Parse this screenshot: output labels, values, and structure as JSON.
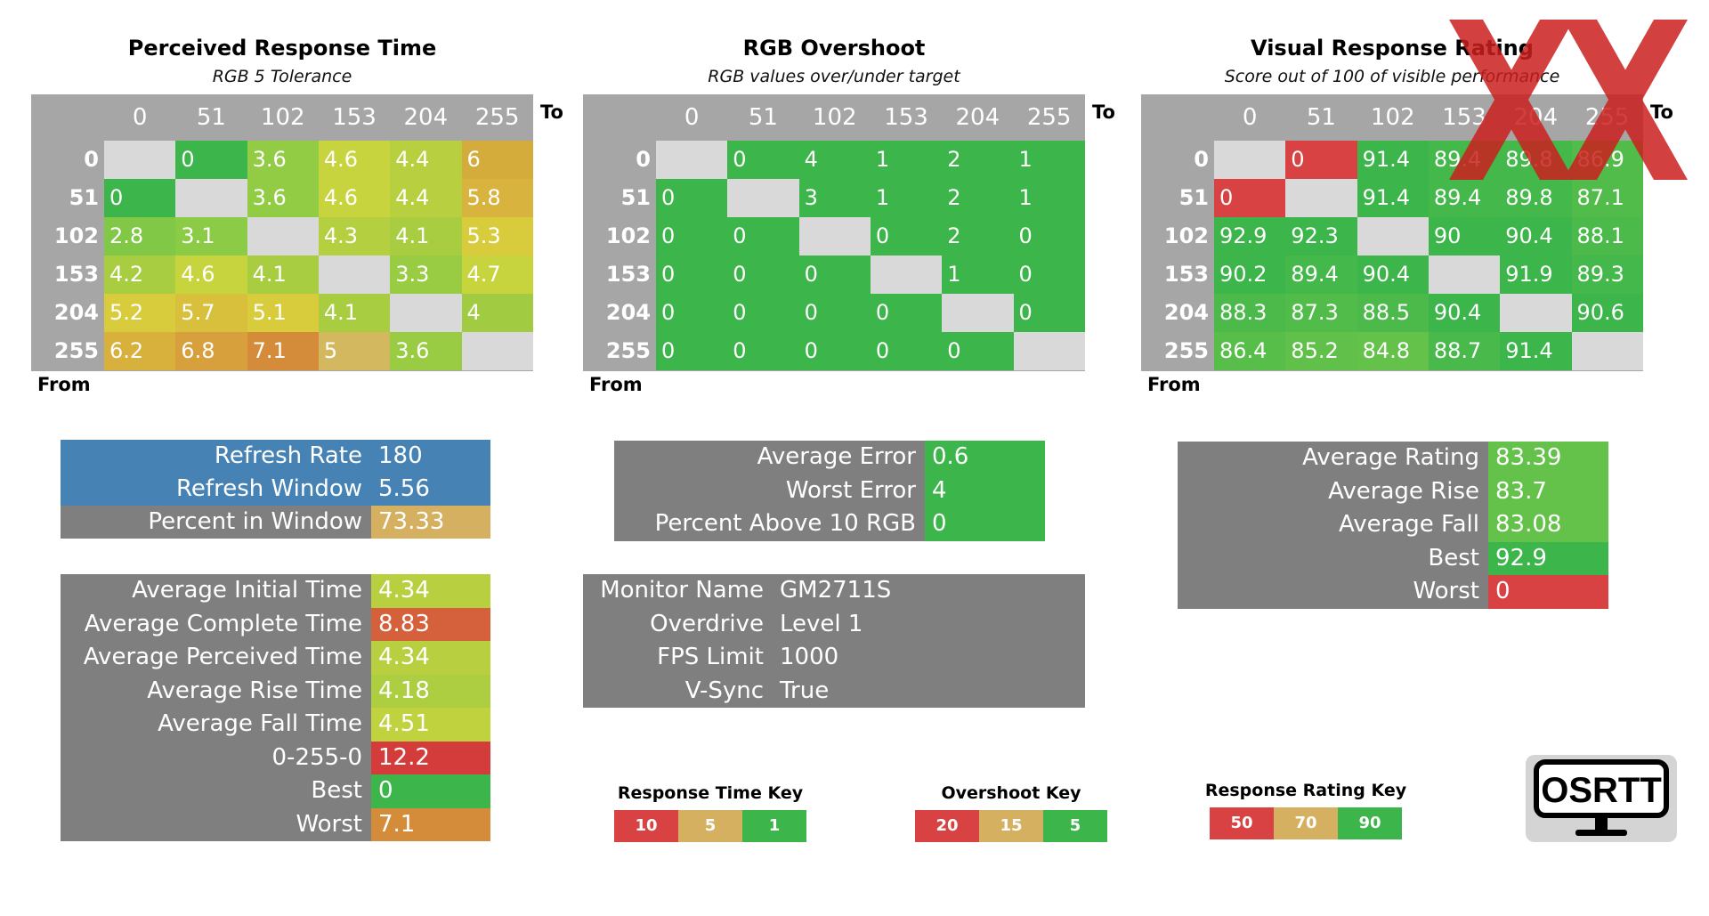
{
  "chart_data": [
    {
      "type": "heatmap",
      "title": "Perceived Response Time",
      "subtitle": "RGB 5 Tolerance",
      "x_axis_label": "To",
      "y_axis_label": "From",
      "columns": [
        "0",
        "51",
        "102",
        "153",
        "204",
        "255"
      ],
      "rows": [
        "0",
        "51",
        "102",
        "153",
        "204",
        "255"
      ],
      "values": [
        [
          null,
          "0",
          "3.6",
          "4.6",
          "4.4",
          "6"
        ],
        [
          "0",
          null,
          "3.6",
          "4.6",
          "4.4",
          "5.8"
        ],
        [
          "2.8",
          "3.1",
          null,
          "4.3",
          "4.1",
          "5.3"
        ],
        [
          "4.2",
          "4.6",
          "4.1",
          null,
          "3.3",
          "4.7"
        ],
        [
          "5.2",
          "5.7",
          "5.1",
          "4.1",
          null,
          "4"
        ],
        [
          "6.2",
          "6.8",
          "7.1",
          "5",
          "3.6",
          null
        ]
      ],
      "colors": [
        [
          "#d9d9d9",
          "#3cb54a",
          "#92cc44",
          "#c8d43d",
          "#b8d03f",
          "#d4ac3c"
        ],
        [
          "#3cb54a",
          "#d9d9d9",
          "#92cc44",
          "#c8d43d",
          "#b8d03f",
          "#d8b43e"
        ],
        [
          "#80c846",
          "#8bcb45",
          "#d9d9d9",
          "#b4cf3f",
          "#a8cd41",
          "#d8cc3c"
        ],
        [
          "#a8cd41",
          "#c8d43d",
          "#a8cd41",
          "#d9d9d9",
          "#99cb43",
          "#c8d43d"
        ],
        [
          "#d8cc3c",
          "#d8c03c",
          "#d8cc3c",
          "#a8cd41",
          "#d9d9d9",
          "#a1cc42"
        ],
        [
          "#d8b03c",
          "#d8a03c",
          "#d48c3a",
          "#d4b860",
          "#99cb43",
          "#d9d9d9"
        ]
      ]
    },
    {
      "type": "heatmap",
      "title": "RGB Overshoot",
      "subtitle": "RGB values over/under target",
      "x_axis_label": "To",
      "y_axis_label": "From",
      "columns": [
        "0",
        "51",
        "102",
        "153",
        "204",
        "255"
      ],
      "rows": [
        "0",
        "51",
        "102",
        "153",
        "204",
        "255"
      ],
      "values": [
        [
          null,
          "0",
          "4",
          "1",
          "2",
          "1"
        ],
        [
          "0",
          null,
          "3",
          "1",
          "2",
          "1"
        ],
        [
          "0",
          "0",
          null,
          "0",
          "2",
          "0"
        ],
        [
          "0",
          "0",
          "0",
          null,
          "1",
          "0"
        ],
        [
          "0",
          "0",
          "0",
          "0",
          null,
          "0"
        ],
        [
          "0",
          "0",
          "0",
          "0",
          "0",
          null
        ]
      ],
      "colors": [
        [
          "#d9d9d9",
          "#3cb54a",
          "#3cb54a",
          "#3cb54a",
          "#3cb54a",
          "#3cb54a"
        ],
        [
          "#3cb54a",
          "#d9d9d9",
          "#3cb54a",
          "#3cb54a",
          "#3cb54a",
          "#3cb54a"
        ],
        [
          "#3cb54a",
          "#3cb54a",
          "#d9d9d9",
          "#3cb54a",
          "#3cb54a",
          "#3cb54a"
        ],
        [
          "#3cb54a",
          "#3cb54a",
          "#3cb54a",
          "#d9d9d9",
          "#3cb54a",
          "#3cb54a"
        ],
        [
          "#3cb54a",
          "#3cb54a",
          "#3cb54a",
          "#3cb54a",
          "#d9d9d9",
          "#3cb54a"
        ],
        [
          "#3cb54a",
          "#3cb54a",
          "#3cb54a",
          "#3cb54a",
          "#3cb54a",
          "#d9d9d9"
        ]
      ]
    },
    {
      "type": "heatmap",
      "title": "Visual Response Rating",
      "subtitle": "Score out of 100 of visible performance",
      "x_axis_label": "To",
      "y_axis_label": "From",
      "columns": [
        "0",
        "51",
        "102",
        "153",
        "204",
        "255"
      ],
      "rows": [
        "0",
        "51",
        "102",
        "153",
        "204",
        "255"
      ],
      "values": [
        [
          null,
          "0",
          "91.4",
          "89.4",
          "89.8",
          "86.9"
        ],
        [
          "0",
          null,
          "91.4",
          "89.4",
          "89.8",
          "87.1"
        ],
        [
          "92.9",
          "92.3",
          null,
          "90",
          "90.4",
          "88.1"
        ],
        [
          "90.2",
          "89.4",
          "90.4",
          null,
          "91.9",
          "89.3"
        ],
        [
          "88.3",
          "87.3",
          "88.5",
          "90.4",
          null,
          "90.6"
        ],
        [
          "86.4",
          "85.2",
          "84.8",
          "88.7",
          "91.4",
          null
        ]
      ],
      "colors": [
        [
          "#d9d9d9",
          "#d84242",
          "#3cb54a",
          "#44b84a",
          "#44b84a",
          "#52bc4a"
        ],
        [
          "#d84242",
          "#d9d9d9",
          "#3cb54a",
          "#44b84a",
          "#44b84a",
          "#52bc4a"
        ],
        [
          "#3cb54a",
          "#3cb54a",
          "#d9d9d9",
          "#3cb54a",
          "#3cb54a",
          "#4cba4a"
        ],
        [
          "#3cb54a",
          "#44b84a",
          "#3cb54a",
          "#d9d9d9",
          "#3cb54a",
          "#44b84a"
        ],
        [
          "#4cba4a",
          "#52bc4a",
          "#4cba4a",
          "#3cb54a",
          "#d9d9d9",
          "#3cb54a"
        ],
        [
          "#58be4a",
          "#60c04a",
          "#64c24a",
          "#48b94a",
          "#3cb54a",
          "#d9d9d9"
        ]
      ]
    }
  ],
  "response_stats_top": [
    {
      "label": "Refresh Rate",
      "value": "180",
      "label_bg": "#4682b4",
      "value_bg": "#4682b4"
    },
    {
      "label": "Refresh Window",
      "value": "5.56",
      "label_bg": "#4682b4",
      "value_bg": "#4682b4"
    },
    {
      "label": "Percent in Window",
      "value": "73.33",
      "label_bg": "#7f7f7f",
      "value_bg": "#d4b060"
    }
  ],
  "response_stats_bottom": [
    {
      "label": "Average Initial Time",
      "value": "4.34",
      "value_bg": "#b8d03f"
    },
    {
      "label": "Average Complete Time",
      "value": "8.83",
      "value_bg": "#d4603c"
    },
    {
      "label": "Average Perceived Time",
      "value": "4.34",
      "value_bg": "#b8d03f"
    },
    {
      "label": "Average Rise Time",
      "value": "4.18",
      "value_bg": "#acce40"
    },
    {
      "label": "Average Fall Time",
      "value": "4.51",
      "value_bg": "#c0d23e"
    },
    {
      "label": "0-255-0",
      "value": "12.2",
      "value_bg": "#d43c3c"
    },
    {
      "label": "Best",
      "value": "0",
      "value_bg": "#3cb54a"
    },
    {
      "label": "Worst",
      "value": "7.1",
      "value_bg": "#d48c3a"
    }
  ],
  "overshoot_stats": [
    {
      "label": "Average Error",
      "value": "0.6",
      "value_bg": "#3cb54a"
    },
    {
      "label": "Worst Error",
      "value": "4",
      "value_bg": "#3cb54a"
    },
    {
      "label": "Percent Above 10 RGB",
      "value": "0",
      "value_bg": "#3cb54a"
    }
  ],
  "monitor_info": [
    {
      "label": "Monitor Name",
      "value": "GM2711S"
    },
    {
      "label": "Overdrive",
      "value": "Level 1"
    },
    {
      "label": "FPS Limit",
      "value": "1000"
    },
    {
      "label": "V-Sync",
      "value": "True"
    }
  ],
  "rating_stats": [
    {
      "label": "Average Rating",
      "value": "83.39",
      "value_bg": "#64c24a"
    },
    {
      "label": "Average Rise",
      "value": "83.7",
      "value_bg": "#64c24a"
    },
    {
      "label": "Average Fall",
      "value": "83.08",
      "value_bg": "#64c24a"
    },
    {
      "label": "Best",
      "value": "92.9",
      "value_bg": "#3cb54a"
    },
    {
      "label": "Worst",
      "value": "0",
      "value_bg": "#d84242"
    }
  ],
  "keys": [
    {
      "title": "Response Time Key",
      "values": [
        "10",
        "5",
        "1"
      ],
      "colors": [
        "#d84242",
        "#d4b060",
        "#3cb54a"
      ]
    },
    {
      "title": "Overshoot Key",
      "values": [
        "20",
        "15",
        "5"
      ],
      "colors": [
        "#d84242",
        "#d4b060",
        "#3cb54a"
      ]
    },
    {
      "title": "Response Rating Key",
      "values": [
        "50",
        "70",
        "90"
      ],
      "colors": [
        "#d84242",
        "#d4b060",
        "#3cb54a"
      ]
    }
  ],
  "logo_text": "OSRTT",
  "watermark_color": "#cc1f1f"
}
